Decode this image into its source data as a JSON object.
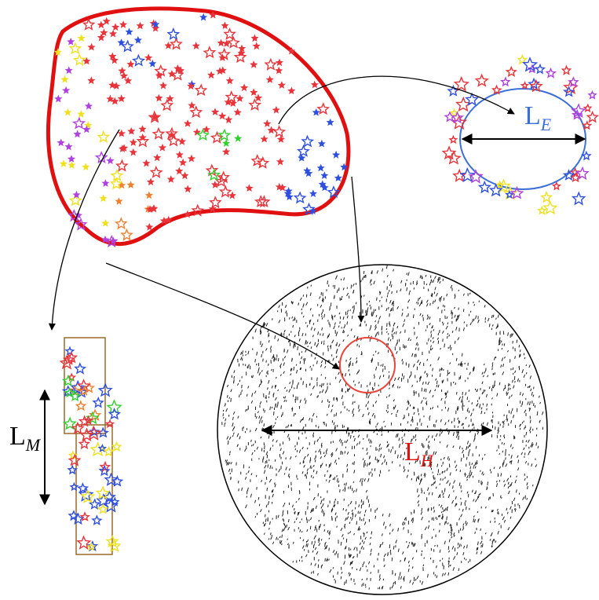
{
  "labels": {
    "le": {
      "main": "L",
      "sub": "E"
    },
    "lh": {
      "main": "L",
      "sub": "H"
    },
    "lm": {
      "main": "L",
      "sub": "M"
    }
  }
}
